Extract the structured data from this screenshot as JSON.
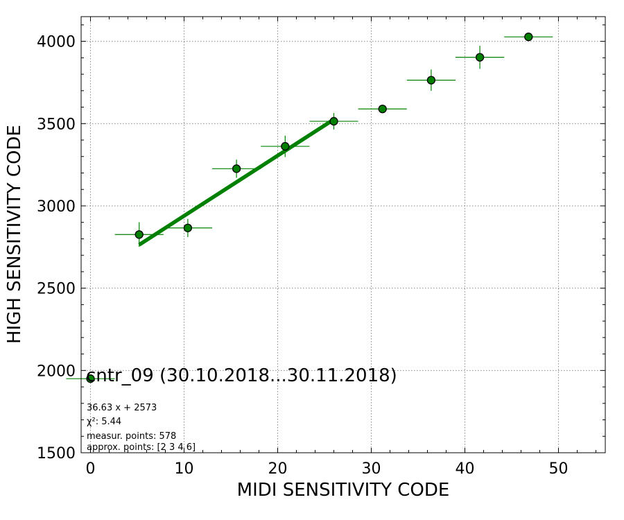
{
  "chart_data": {
    "type": "scatter",
    "title": "cntr_09 (30.10.2018...30.11.2018)",
    "xlabel": "MIDI SENSITIVITY CODE",
    "ylabel": "HIGH SENSITIVITY CODE",
    "xlim": [
      -1,
      55
    ],
    "ylim": [
      1500,
      4150
    ],
    "xticks": [
      0,
      10,
      20,
      30,
      40,
      50
    ],
    "yticks": [
      1500,
      2000,
      2500,
      3000,
      3500,
      4000
    ],
    "grid": true,
    "colors": {
      "points": "#008000",
      "fit_line": "#008000",
      "point_edge": "#000000"
    },
    "points": [
      {
        "x": 0.0,
        "y": 1950,
        "xerr": 2.6,
        "yerr": 5
      },
      {
        "x": 5.2,
        "y": 2826,
        "xerr": 2.6,
        "yerr": 75
      },
      {
        "x": 10.4,
        "y": 2866,
        "xerr": 2.6,
        "yerr": 55
      },
      {
        "x": 15.6,
        "y": 3226,
        "xerr": 2.6,
        "yerr": 55
      },
      {
        "x": 20.8,
        "y": 3362,
        "xerr": 2.6,
        "yerr": 65
      },
      {
        "x": 26.0,
        "y": 3514,
        "xerr": 2.6,
        "yerr": 50
      },
      {
        "x": 31.2,
        "y": 3589,
        "xerr": 2.6,
        "yerr": 25
      },
      {
        "x": 36.4,
        "y": 3764,
        "xerr": 2.6,
        "yerr": 65
      },
      {
        "x": 41.6,
        "y": 3903,
        "xerr": 2.6,
        "yerr": 70
      },
      {
        "x": 46.8,
        "y": 4027,
        "xerr": 2.6,
        "yerr": 5
      }
    ],
    "fit_line": {
      "slope": 36.63,
      "intercept": 2573,
      "x_range": [
        5.2,
        26.0
      ]
    },
    "annotations": [
      "36.63 x + 2573",
      "χ²: 5.44",
      "measur. points: 578",
      "approx. points: [2 3 4 6]"
    ]
  }
}
